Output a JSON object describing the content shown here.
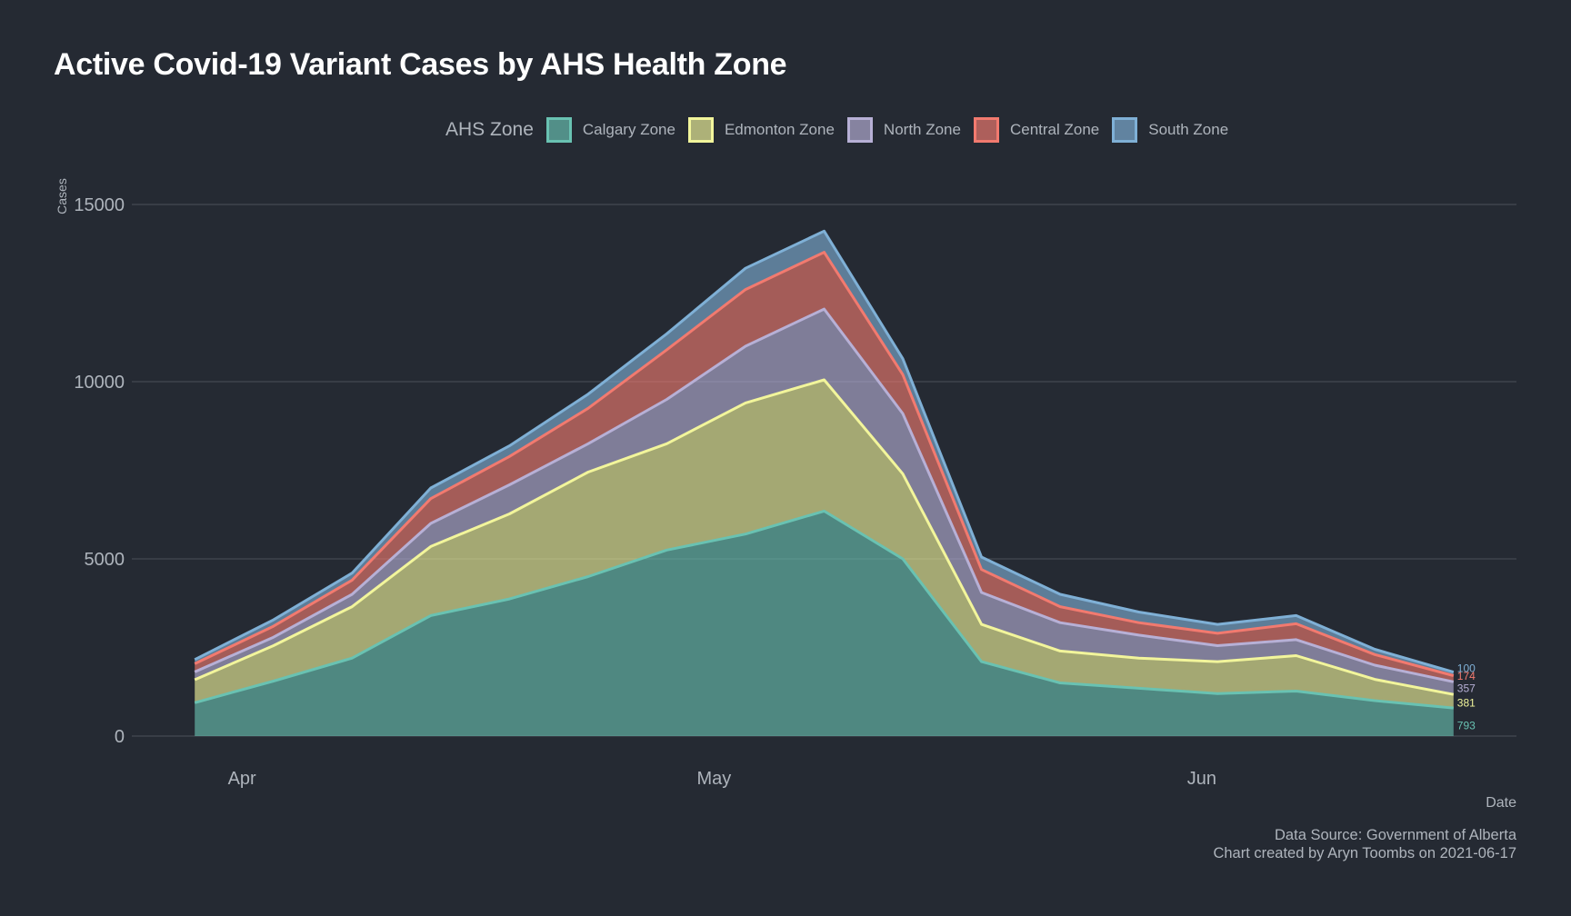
{
  "chart_data": {
    "type": "area",
    "stacked": true,
    "title": "Active Covid-19 Variant Cases by AHS Health Zone",
    "xlabel": "Date",
    "ylabel": "Cases",
    "legend_title": "AHS Zone",
    "legend_position": "top",
    "grid": true,
    "x_tick_labels": [
      {
        "label": "Apr",
        "date": "2021-04-01"
      },
      {
        "label": "May",
        "date": "2021-05-01"
      },
      {
        "label": "Jun",
        "date": "2021-06-01"
      }
    ],
    "y_ticks": [
      0,
      5000,
      10000,
      15000
    ],
    "ylim": [
      0,
      15000
    ],
    "xlim": [
      "2021-03-25",
      "2021-06-21"
    ],
    "x": [
      "2021-03-29",
      "2021-04-03",
      "2021-04-08",
      "2021-04-13",
      "2021-04-18",
      "2021-04-23",
      "2021-04-28",
      "2021-05-03",
      "2021-05-08",
      "2021-05-13",
      "2021-05-18",
      "2021-05-23",
      "2021-05-28",
      "2021-06-02",
      "2021-06-07",
      "2021-06-12",
      "2021-06-17"
    ],
    "series": [
      {
        "name": "Calgary Zone",
        "color": "#69c2b2",
        "values": [
          940,
          1550,
          2200,
          3400,
          3870,
          4500,
          5250,
          5700,
          6350,
          5000,
          2100,
          1500,
          1350,
          1200,
          1270,
          1000,
          793
        ]
      },
      {
        "name": "Edmonton Zone",
        "color": "#f2f59b",
        "values": [
          650,
          1000,
          1450,
          1950,
          2400,
          2950,
          3000,
          3700,
          3700,
          2400,
          1050,
          900,
          850,
          900,
          1000,
          600,
          381
        ]
      },
      {
        "name": "North Zone",
        "color": "#b7b0d6",
        "values": [
          220,
          240,
          350,
          650,
          820,
          800,
          1250,
          1600,
          2000,
          1700,
          900,
          800,
          650,
          450,
          450,
          400,
          357
        ]
      },
      {
        "name": "Central Zone",
        "color": "#f27a6f",
        "values": [
          230,
          310,
          400,
          700,
          800,
          1000,
          1400,
          1600,
          1600,
          1100,
          650,
          450,
          350,
          350,
          450,
          300,
          174
        ]
      },
      {
        "name": "South Zone",
        "color": "#7fb0d6",
        "values": [
          120,
          180,
          200,
          300,
          300,
          400,
          450,
          600,
          600,
          450,
          350,
          350,
          300,
          250,
          230,
          150,
          100
        ]
      }
    ],
    "end_labels": [
      "793",
      "381",
      "357",
      "174",
      "100"
    ]
  },
  "caption": {
    "line1": "Data Source: Government of Alberta",
    "line2": "Chart created by Aryn Toombs on 2021-06-17"
  }
}
